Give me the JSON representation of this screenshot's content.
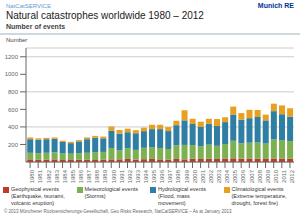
{
  "chart_data": {
    "type": "bar",
    "title": "Natural catastrophes worldwide 1980 – 2012",
    "subtitle": "Number of events",
    "ylabel": "Number",
    "annotations": [
      "NatCatSERVICE",
      "Munich RE",
      "© 2013 Münchener Rückversicherungs-Gesellschaft, Geo Risks Research, NatCatSERVICE – As at January 2013"
    ],
    "categories": [
      "1980",
      "1981",
      "1982",
      "1983",
      "1984",
      "1985",
      "1986",
      "1987",
      "1988",
      "1989",
      "1990",
      "1991",
      "1992",
      "1993",
      "1994",
      "1995",
      "1996",
      "1997",
      "1998",
      "1999",
      "2000",
      "2001",
      "2002",
      "2003",
      "2004",
      "2005",
      "2006",
      "2007",
      "2008",
      "2009",
      "2010",
      "2011",
      "2012"
    ],
    "series": [
      {
        "name": "Geophysical events\n(Earthquake, tsunami,\nvolcanic eruption)",
        "color": "#c0392b",
        "values": [
          30,
          25,
          25,
          30,
          22,
          30,
          25,
          25,
          23,
          25,
          30,
          30,
          35,
          28,
          32,
          35,
          30,
          28,
          35,
          30,
          38,
          35,
          38,
          35,
          40,
          42,
          38,
          40,
          38,
          35,
          40,
          40,
          38
        ]
      },
      {
        "name": "Meteorological events\n(Storms)",
        "color": "#7db050",
        "values": [
          75,
          75,
          80,
          80,
          75,
          65,
          75,
          80,
          90,
          90,
          130,
          105,
          120,
          110,
          130,
          135,
          130,
          120,
          155,
          165,
          155,
          145,
          160,
          150,
          165,
          200,
          175,
          180,
          185,
          175,
          220,
          210,
          200
        ]
      },
      {
        "name": "Hydrological events\n(Flood, mass\nmovement)",
        "color": "#2e7fa3",
        "values": [
          155,
          155,
          155,
          155,
          130,
          120,
          135,
          155,
          165,
          155,
          195,
          190,
          185,
          190,
          190,
          205,
          215,
          205,
          230,
          280,
          240,
          220,
          240,
          225,
          250,
          300,
          270,
          280,
          290,
          265,
          320,
          295,
          280
        ]
      },
      {
        "name": "Climatological events\n(Extreme temperature,\ndrought, forest fire)",
        "color": "#e8a020",
        "values": [
          20,
          15,
          15,
          15,
          15,
          15,
          15,
          20,
          20,
          20,
          50,
          40,
          40,
          35,
          40,
          50,
          50,
          45,
          50,
          115,
          60,
          60,
          55,
          80,
          55,
          90,
          75,
          95,
          80,
          65,
          85,
          100,
          95
        ]
      }
    ],
    "ylim": [
      0,
      1300
    ],
    "yticks": [
      200,
      400,
      600,
      800,
      1000,
      1200
    ],
    "grid": true,
    "stacked": true,
    "legend": "bottom"
  }
}
